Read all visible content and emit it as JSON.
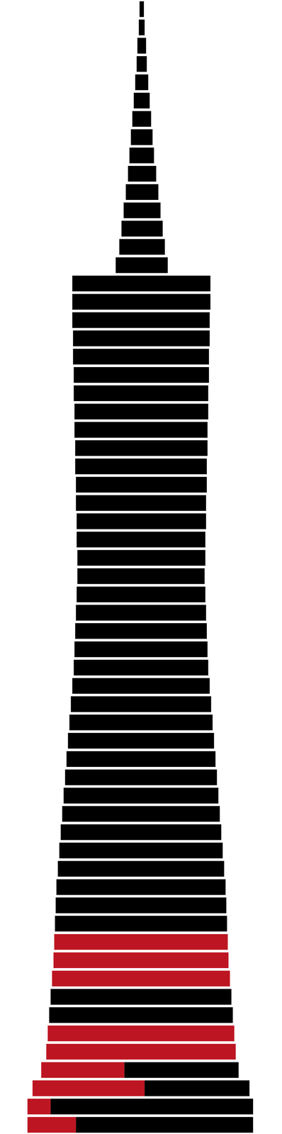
{
  "chart_data": {
    "type": "bar",
    "orientation": "horizontal",
    "grid": false,
    "tick_labels": false,
    "xlim": [
      0,
      390
    ],
    "categories": [
      null,
      null,
      null,
      null,
      null,
      null,
      null,
      null,
      null,
      null,
      null,
      null,
      null,
      null,
      null,
      null,
      null,
      null,
      null,
      null,
      null,
      null,
      null,
      null,
      null,
      null,
      null,
      null,
      null,
      null,
      null,
      null,
      null,
      null,
      null,
      null,
      null,
      null,
      null,
      null,
      null,
      null,
      null,
      null,
      null,
      null,
      null,
      null,
      null,
      null,
      null,
      null,
      null,
      null,
      null,
      null,
      null,
      null,
      null,
      null,
      null,
      null
    ],
    "series": [
      {
        "color": "#000000",
        "values": [
          [
            193,
            199
          ],
          [
            192,
            200
          ],
          [
            190,
            202
          ],
          [
            189,
            203
          ],
          [
            187,
            205
          ],
          [
            185,
            207
          ],
          [
            183,
            209
          ],
          [
            181,
            211
          ],
          [
            179,
            213
          ],
          [
            177,
            216
          ],
          [
            174,
            219
          ],
          [
            171,
            222
          ],
          [
            168,
            225
          ],
          [
            165,
            228
          ],
          [
            160,
            232
          ],
          [
            100,
            291
          ],
          [
            100,
            291
          ],
          [
            100,
            290
          ],
          [
            101,
            290
          ],
          [
            101,
            289
          ],
          [
            102,
            289
          ],
          [
            102,
            288
          ],
          [
            103,
            288
          ],
          [
            103,
            287
          ],
          [
            104,
            287
          ],
          [
            104,
            286
          ],
          [
            105,
            286
          ],
          [
            105,
            285
          ],
          [
            106,
            285
          ],
          [
            106,
            284
          ],
          [
            107,
            284
          ],
          [
            107,
            283
          ],
          [
            106,
            284
          ],
          [
            105,
            285
          ],
          [
            104,
            286
          ],
          [
            103,
            287
          ],
          [
            102,
            288
          ],
          [
            100,
            290
          ],
          [
            98,
            292
          ],
          [
            96,
            294
          ],
          [
            94,
            296
          ],
          [
            92,
            298
          ],
          [
            90,
            300
          ],
          [
            88,
            302
          ],
          [
            86,
            304
          ],
          [
            84,
            306
          ],
          [
            82,
            308
          ],
          [
            80,
            310
          ],
          [
            78,
            312
          ],
          [
            77,
            313
          ],
          [
            76,
            314
          ],
          null,
          null,
          null,
          [
            70,
            320
          ],
          [
            68,
            322
          ],
          null,
          null,
          [
            172,
            330
          ],
          [
            200,
            345
          ],
          [
            70,
            350
          ],
          [
            105,
            350
          ]
        ]
      },
      {
        "color": "#bd1622",
        "values": [
          null,
          null,
          null,
          null,
          null,
          null,
          null,
          null,
          null,
          null,
          null,
          null,
          null,
          null,
          null,
          null,
          null,
          null,
          null,
          null,
          null,
          null,
          null,
          null,
          null,
          null,
          null,
          null,
          null,
          null,
          null,
          null,
          null,
          null,
          null,
          null,
          null,
          null,
          null,
          null,
          null,
          null,
          null,
          null,
          null,
          null,
          null,
          null,
          null,
          null,
          null,
          [
            75,
            315
          ],
          [
            74,
            316
          ],
          [
            72,
            318
          ],
          null,
          null,
          [
            66,
            324
          ],
          [
            64,
            326
          ],
          [
            57,
            172
          ],
          [
            45,
            200
          ],
          [
            38,
            70
          ],
          [
            38,
            105
          ]
        ]
      }
    ]
  }
}
